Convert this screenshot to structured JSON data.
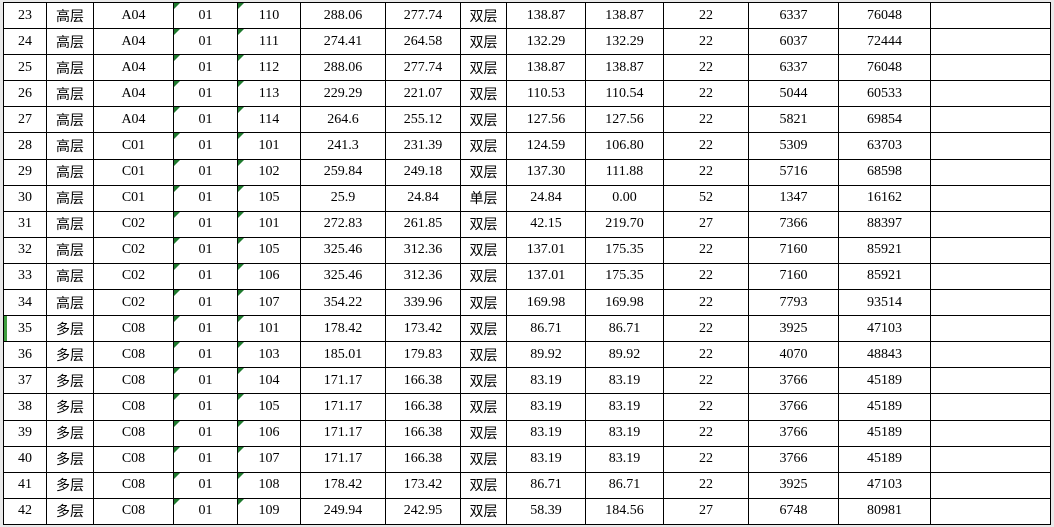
{
  "sheet": {
    "visible_row_numbers_first": "23",
    "visible_row_numbers_last": "42",
    "rows": [
      [
        "23",
        "高层",
        "A04",
        "01",
        "110",
        "288.06",
        "277.74",
        "双层",
        "138.87",
        "138.87",
        "22",
        "6337",
        "76048",
        ""
      ],
      [
        "24",
        "高层",
        "A04",
        "01",
        "111",
        "274.41",
        "264.58",
        "双层",
        "132.29",
        "132.29",
        "22",
        "6037",
        "72444",
        ""
      ],
      [
        "25",
        "高层",
        "A04",
        "01",
        "112",
        "288.06",
        "277.74",
        "双层",
        "138.87",
        "138.87",
        "22",
        "6337",
        "76048",
        ""
      ],
      [
        "26",
        "高层",
        "A04",
        "01",
        "113",
        "229.29",
        "221.07",
        "双层",
        "110.53",
        "110.54",
        "22",
        "5044",
        "60533",
        ""
      ],
      [
        "27",
        "高层",
        "A04",
        "01",
        "114",
        "264.6",
        "255.12",
        "双层",
        "127.56",
        "127.56",
        "22",
        "5821",
        "69854",
        ""
      ],
      [
        "28",
        "高层",
        "C01",
        "01",
        "101",
        "241.3",
        "231.39",
        "双层",
        "124.59",
        "106.80",
        "22",
        "5309",
        "63703",
        ""
      ],
      [
        "29",
        "高层",
        "C01",
        "01",
        "102",
        "259.84",
        "249.18",
        "双层",
        "137.30",
        "111.88",
        "22",
        "5716",
        "68598",
        ""
      ],
      [
        "30",
        "高层",
        "C01",
        "01",
        "105",
        "25.9",
        "24.84",
        "单层",
        "24.84",
        "0.00",
        "52",
        "1347",
        "16162",
        ""
      ],
      [
        "31",
        "高层",
        "C02",
        "01",
        "101",
        "272.83",
        "261.85",
        "双层",
        "42.15",
        "219.70",
        "27",
        "7366",
        "88397",
        ""
      ],
      [
        "32",
        "高层",
        "C02",
        "01",
        "105",
        "325.46",
        "312.36",
        "双层",
        "137.01",
        "175.35",
        "22",
        "7160",
        "85921",
        ""
      ],
      [
        "33",
        "高层",
        "C02",
        "01",
        "106",
        "325.46",
        "312.36",
        "双层",
        "137.01",
        "175.35",
        "22",
        "7160",
        "85921",
        ""
      ],
      [
        "34",
        "高层",
        "C02",
        "01",
        "107",
        "354.22",
        "339.96",
        "双层",
        "169.98",
        "169.98",
        "22",
        "7793",
        "93514",
        ""
      ],
      [
        "35",
        "多层",
        "C08",
        "01",
        "101",
        "178.42",
        "173.42",
        "双层",
        "86.71",
        "86.71",
        "22",
        "3925",
        "47103",
        ""
      ],
      [
        "36",
        "多层",
        "C08",
        "01",
        "103",
        "185.01",
        "179.83",
        "双层",
        "89.92",
        "89.92",
        "22",
        "4070",
        "48843",
        ""
      ],
      [
        "37",
        "多层",
        "C08",
        "01",
        "104",
        "171.17",
        "166.38",
        "双层",
        "83.19",
        "83.19",
        "22",
        "3766",
        "45189",
        ""
      ],
      [
        "38",
        "多层",
        "C08",
        "01",
        "105",
        "171.17",
        "166.38",
        "双层",
        "83.19",
        "83.19",
        "22",
        "3766",
        "45189",
        ""
      ],
      [
        "39",
        "多层",
        "C08",
        "01",
        "106",
        "171.17",
        "166.38",
        "双层",
        "83.19",
        "83.19",
        "22",
        "3766",
        "45189",
        ""
      ],
      [
        "40",
        "多层",
        "C08",
        "01",
        "107",
        "171.17",
        "166.38",
        "双层",
        "83.19",
        "83.19",
        "22",
        "3766",
        "45189",
        ""
      ],
      [
        "41",
        "多层",
        "C08",
        "01",
        "108",
        "178.42",
        "173.42",
        "双层",
        "86.71",
        "86.71",
        "22",
        "3925",
        "47103",
        ""
      ],
      [
        "42",
        "多层",
        "C08",
        "01",
        "109",
        "249.94",
        "242.95",
        "双层",
        "58.39",
        "184.56",
        "27",
        "6748",
        "80981",
        ""
      ]
    ],
    "triangle_indicator_columns": [
      3,
      4
    ],
    "marked_row_number": "35",
    "icons": {
      "number-stored-as-text-indicator-icon": "green top-left corner triangle",
      "row-selection-marker": "green vertical bar at left edge of row 35"
    }
  },
  "colors": {
    "grid": "#000000",
    "triangle": "#1f7a2e",
    "row_marker": "#3f9e3f",
    "cell_background": "#ffffff",
    "margin_background": "#e9e9e9"
  }
}
